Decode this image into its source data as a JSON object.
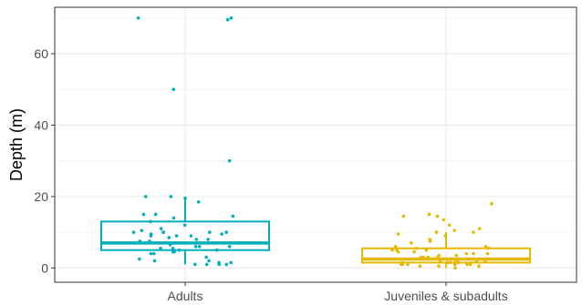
{
  "chart_data": {
    "type": "boxplot",
    "ylabel": "Depth (m)",
    "xlabel": "",
    "categories": [
      "Adults",
      "Juveniles & subadults"
    ],
    "ylim": [
      -4,
      73
    ],
    "yticks": [
      0,
      20,
      40,
      60
    ],
    "ytick_labels": [
      "0",
      "20",
      "40",
      "60"
    ],
    "grid": true,
    "groups": [
      {
        "name": "Adults",
        "color": "#00AFBB",
        "stats": {
          "min": 1,
          "q1": 5,
          "median": 7,
          "q3": 13,
          "max": 20
        },
        "points": [
          69.5,
          70,
          70,
          50,
          30,
          20,
          20,
          19.5,
          18.5,
          15,
          15,
          14.5,
          14,
          13,
          12,
          11,
          10.5,
          10,
          10,
          10,
          10,
          10,
          9.5,
          9.5,
          9,
          9,
          9,
          8.5,
          8,
          8,
          7.5,
          7.5,
          7,
          7,
          7,
          6.5,
          6,
          6,
          6,
          5.5,
          5.5,
          5,
          5,
          5,
          4.5,
          4.5,
          4,
          4,
          3,
          2.5,
          2,
          2,
          1.5,
          1.5,
          1,
          1,
          1,
          1
        ]
      },
      {
        "name": "Juveniles & subadults",
        "color": "#E7B800",
        "stats": {
          "min": 0,
          "q1": 1.5,
          "median": 2.5,
          "q3": 5.5,
          "max": 10
        },
        "points": [
          18,
          15,
          14.5,
          14.5,
          13.5,
          12,
          11,
          10.5,
          10,
          10,
          9.5,
          9,
          8,
          7.5,
          7,
          6,
          6,
          5.5,
          5.5,
          5,
          5,
          5,
          4.5,
          4.5,
          4,
          4,
          4,
          3.5,
          3.5,
          3,
          3,
          3,
          3,
          2.5,
          2.5,
          2.5,
          2,
          2,
          2,
          2,
          2,
          1.5,
          1.5,
          1.5,
          1.5,
          1,
          1,
          1,
          1,
          1,
          1,
          0.5,
          0.5,
          0.5,
          0
        ]
      }
    ]
  }
}
